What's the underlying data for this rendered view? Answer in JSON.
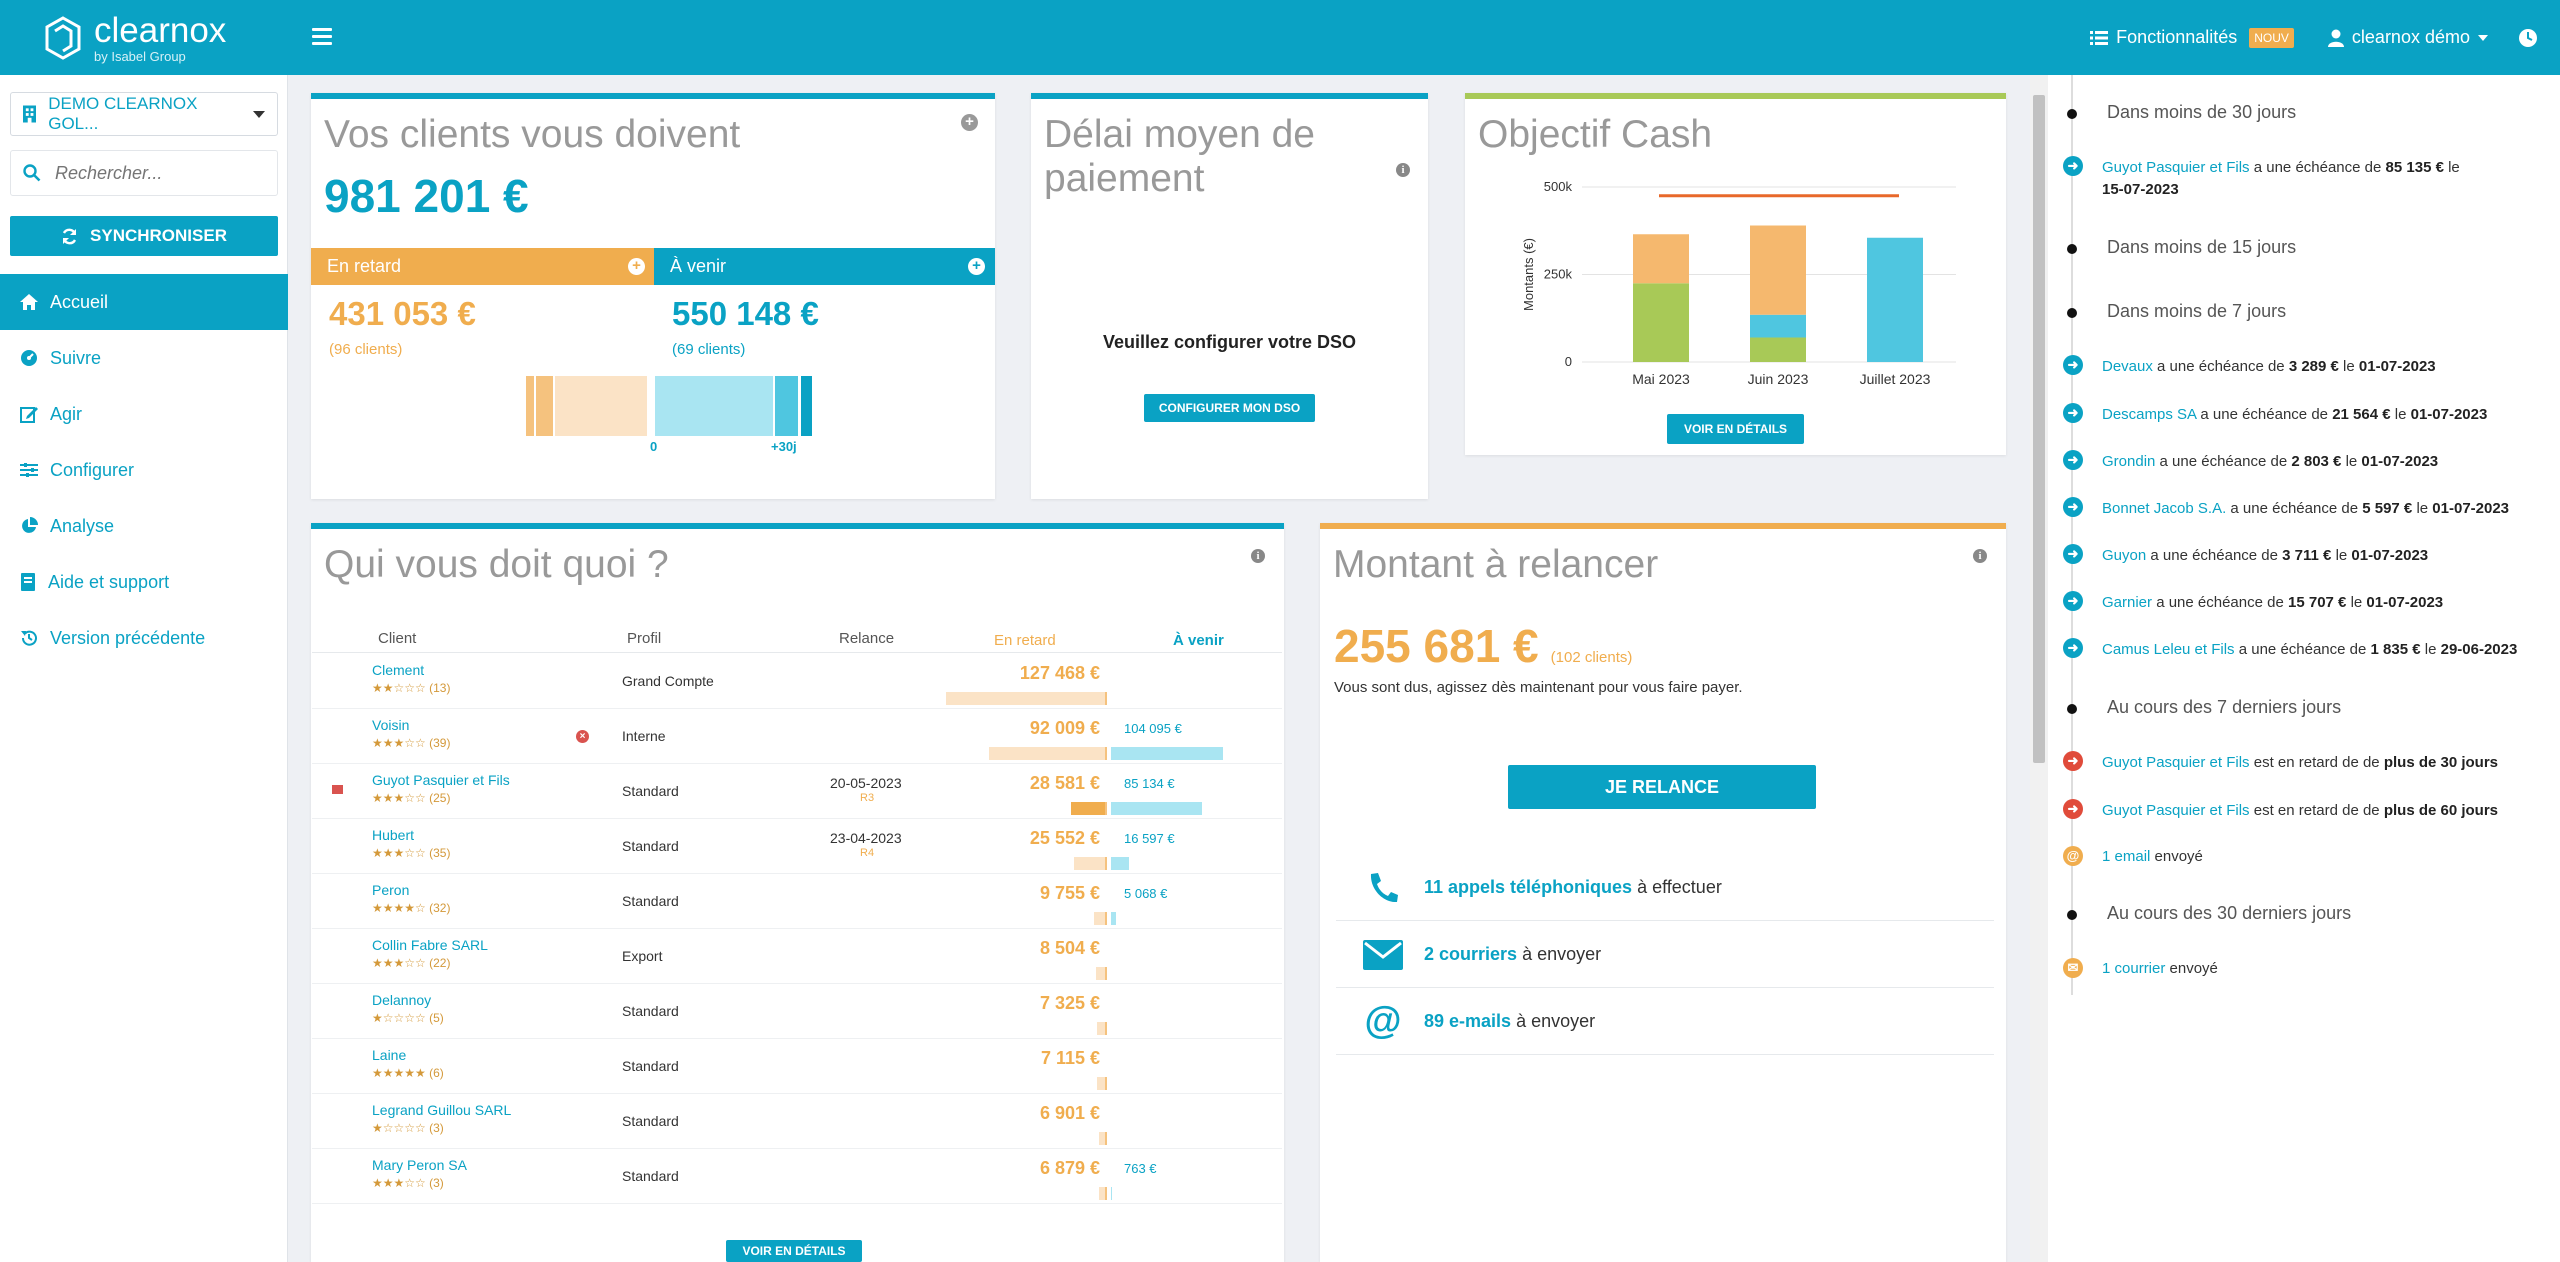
{
  "header": {
    "logo_name": "clearnox",
    "logo_sub": "by Isabel Group",
    "features_label": "Fonctionnalités",
    "features_badge": "NOUV",
    "user_label": "clearnox démo"
  },
  "sidebar": {
    "company": "DEMO CLEARNOX GOL...",
    "search_placeholder": "Rechercher...",
    "sync_label": "SYNCHRONISER",
    "items": [
      {
        "label": "Accueil",
        "icon": "home-icon"
      },
      {
        "label": "Suivre",
        "icon": "dashboard-icon"
      },
      {
        "label": "Agir",
        "icon": "edit-icon"
      },
      {
        "label": "Configurer",
        "icon": "sliders-icon"
      },
      {
        "label": "Analyse",
        "icon": "pie-chart-icon"
      },
      {
        "label": "Aide et support",
        "icon": "book-icon"
      },
      {
        "label": "Version précédente",
        "icon": "history-icon"
      }
    ]
  },
  "clients_card": {
    "title": "Vos clients vous doivent",
    "total": "981 201 €",
    "late_label": "En retard",
    "upcoming_label": "À venir",
    "late_amount": "431 053 €",
    "late_count": "(96 clients)",
    "upcoming_amount": "550 148 €",
    "upcoming_count": "(69 clients)",
    "axis_zero": "0",
    "axis_plus30": "+30j"
  },
  "dso_card": {
    "title": "Délai moyen de paiement",
    "message": "Veuillez configurer votre DSO",
    "button": "CONFIGURER MON DSO"
  },
  "cash_card": {
    "title": "Objectif Cash",
    "button": "VOIR EN DÉTAILS",
    "target_color": "#e8682a",
    "colors": {
      "green": "#a8c957",
      "orange": "#f5b86e",
      "blue": "#4fc6e0"
    }
  },
  "chart_data": {
    "type": "bar",
    "stacked": true,
    "categories": [
      "Mai 2023",
      "Juin 2023",
      "Juillet 2023"
    ],
    "ylabel": "Montants (€)",
    "ylim": [
      0,
      500000
    ],
    "yticks": [
      "0",
      "250k",
      "500k"
    ],
    "series": [
      {
        "values": [
          225000,
          70000,
          0
        ]
      },
      {
        "values": [
          0,
          65000,
          355000
        ]
      },
      {
        "values": [
          140000,
          255000,
          0
        ]
      }
    ],
    "target": 475000,
    "grid": true
  },
  "debtors_card": {
    "title": "Qui vous doit quoi ?",
    "col_client": "Client",
    "col_profil": "Profil",
    "col_relance": "Relance",
    "col_late": "En retard",
    "col_upcoming": "À venir",
    "button": "VOIR EN DÉTAILS",
    "rows": [
      {
        "client": "Clement",
        "stars": "★★☆☆☆",
        "count": "(13)",
        "profil": "Grand Compte",
        "relance": "",
        "code": "",
        "late": "127 468 €",
        "upcoming": "",
        "late_frac": 0.98,
        "up_frac": 0,
        "flag": false,
        "x": false
      },
      {
        "client": "Voisin",
        "stars": "★★★☆☆",
        "count": "(39)",
        "profil": "Interne",
        "relance": "",
        "code": "",
        "late": "92 009 €",
        "upcoming": "104 095 €",
        "late_frac": 0.72,
        "up_frac": 0.82,
        "flag": false,
        "x": true
      },
      {
        "client": "Guyot Pasquier et Fils",
        "stars": "★★★☆☆",
        "count": "(25)",
        "profil": "Standard",
        "relance": "20-05-2023",
        "code": "R3",
        "late": "28 581 €",
        "upcoming": "85 134 €",
        "late_frac": 0.22,
        "up_frac": 0.67,
        "flag": true,
        "x": false
      },
      {
        "client": "Hubert",
        "stars": "★★★☆☆",
        "count": "(35)",
        "profil": "Standard",
        "relance": "23-04-2023",
        "code": "R4",
        "late": "25 552 €",
        "upcoming": "16 597 €",
        "late_frac": 0.2,
        "up_frac": 0.13,
        "flag": false,
        "x": false
      },
      {
        "client": "Peron",
        "stars": "★★★★☆",
        "count": "(32)",
        "profil": "Standard",
        "relance": "",
        "code": "",
        "late": "9 755 €",
        "upcoming": "5 068 €",
        "late_frac": 0.08,
        "up_frac": 0.04,
        "flag": false,
        "x": false
      },
      {
        "client": "Collin Fabre SARL",
        "stars": "★★★☆☆",
        "count": "(22)",
        "profil": "Export",
        "relance": "",
        "code": "",
        "late": "8 504 €",
        "upcoming": "",
        "late_frac": 0.07,
        "up_frac": 0,
        "flag": false,
        "x": false
      },
      {
        "client": "Delannoy",
        "stars": "★☆☆☆☆",
        "count": "(5)",
        "profil": "Standard",
        "relance": "",
        "code": "",
        "late": "7 325 €",
        "upcoming": "",
        "late_frac": 0.06,
        "up_frac": 0,
        "flag": false,
        "x": false
      },
      {
        "client": "Laine",
        "stars": "★★★★★",
        "count": "(6)",
        "profil": "Standard",
        "relance": "",
        "code": "",
        "late": "7 115 €",
        "upcoming": "",
        "late_frac": 0.06,
        "up_frac": 0,
        "flag": false,
        "x": false
      },
      {
        "client": "Legrand Guillou SARL",
        "stars": "★☆☆☆☆",
        "count": "(3)",
        "profil": "Standard",
        "relance": "",
        "code": "",
        "late": "6 901 €",
        "upcoming": "",
        "late_frac": 0.05,
        "up_frac": 0,
        "flag": false,
        "x": false
      },
      {
        "client": "Mary Peron SA",
        "stars": "★★★☆☆",
        "count": "(3)",
        "profil": "Standard",
        "relance": "",
        "code": "",
        "late": "6 879 €",
        "upcoming": "763 €",
        "late_frac": 0.05,
        "up_frac": 0.01,
        "flag": false,
        "x": false
      }
    ]
  },
  "relance_card": {
    "title": "Montant à relancer",
    "amount": "255 681 €",
    "count": "(102 clients)",
    "desc": "Vous sont dus, agissez dès maintenant pour vous faire payer.",
    "button": "JE RELANCE",
    "actions": [
      {
        "link": "11 appels téléphoniques",
        "rest": "à effectuer",
        "icon": "phone-icon"
      },
      {
        "link": "2 courriers",
        "rest": "à envoyer",
        "icon": "envelope-icon"
      },
      {
        "link": "89 e-mails",
        "rest": "à envoyer",
        "icon": "at-icon"
      }
    ]
  },
  "timeline": {
    "heads": [
      "Dans moins de 30 jours",
      "Dans moins de 15 jours",
      "Dans moins de 7 jours",
      "Au cours des 7 derniers jours",
      "Au cours des 30 derniers jours"
    ],
    "entries": [
      {
        "client": "Guyot Pasquier et Fils",
        "mid": "a une échéance de",
        "amount": "85 135 €",
        "le": "le",
        "date": "15-07-2023"
      },
      {
        "client": "Devaux",
        "mid": "a une échéance de",
        "amount": "3 289 €",
        "le": "le",
        "date": "01-07-2023"
      },
      {
        "client": "Descamps SA",
        "mid": "a une échéance de",
        "amount": "21 564 €",
        "le": "le",
        "date": "01-07-2023"
      },
      {
        "client": "Grondin",
        "mid": "a une échéance de",
        "amount": "2 803 €",
        "le": "le",
        "date": "01-07-2023"
      },
      {
        "client": "Bonnet Jacob S.A.",
        "mid": "a une échéance de",
        "amount": "5 597 €",
        "le": "le",
        "date": "01-07-2023"
      },
      {
        "client": "Guyon",
        "mid": "a une échéance de",
        "amount": "3 711 €",
        "le": "le",
        "date": "01-07-2023"
      },
      {
        "client": "Garnier",
        "mid": "a une échéance de",
        "amount": "15 707 €",
        "le": "le",
        "date": "01-07-2023"
      },
      {
        "client": "Camus Leleu et Fils",
        "mid": "a une échéance de",
        "amount": "1 835 €",
        "le": "le",
        "date": "29-06-2023"
      }
    ],
    "late": [
      {
        "client": "Guyot Pasquier et Fils",
        "mid": "est en retard de de",
        "bold": "plus de 30 jours"
      },
      {
        "client": "Guyot Pasquier et Fils",
        "mid": "est en retard de de",
        "bold": "plus de 60 jours"
      }
    ],
    "email_link": "1 email",
    "email_rest": "envoyé",
    "mail_link": "1 courrier",
    "mail_rest": "envoyé"
  }
}
